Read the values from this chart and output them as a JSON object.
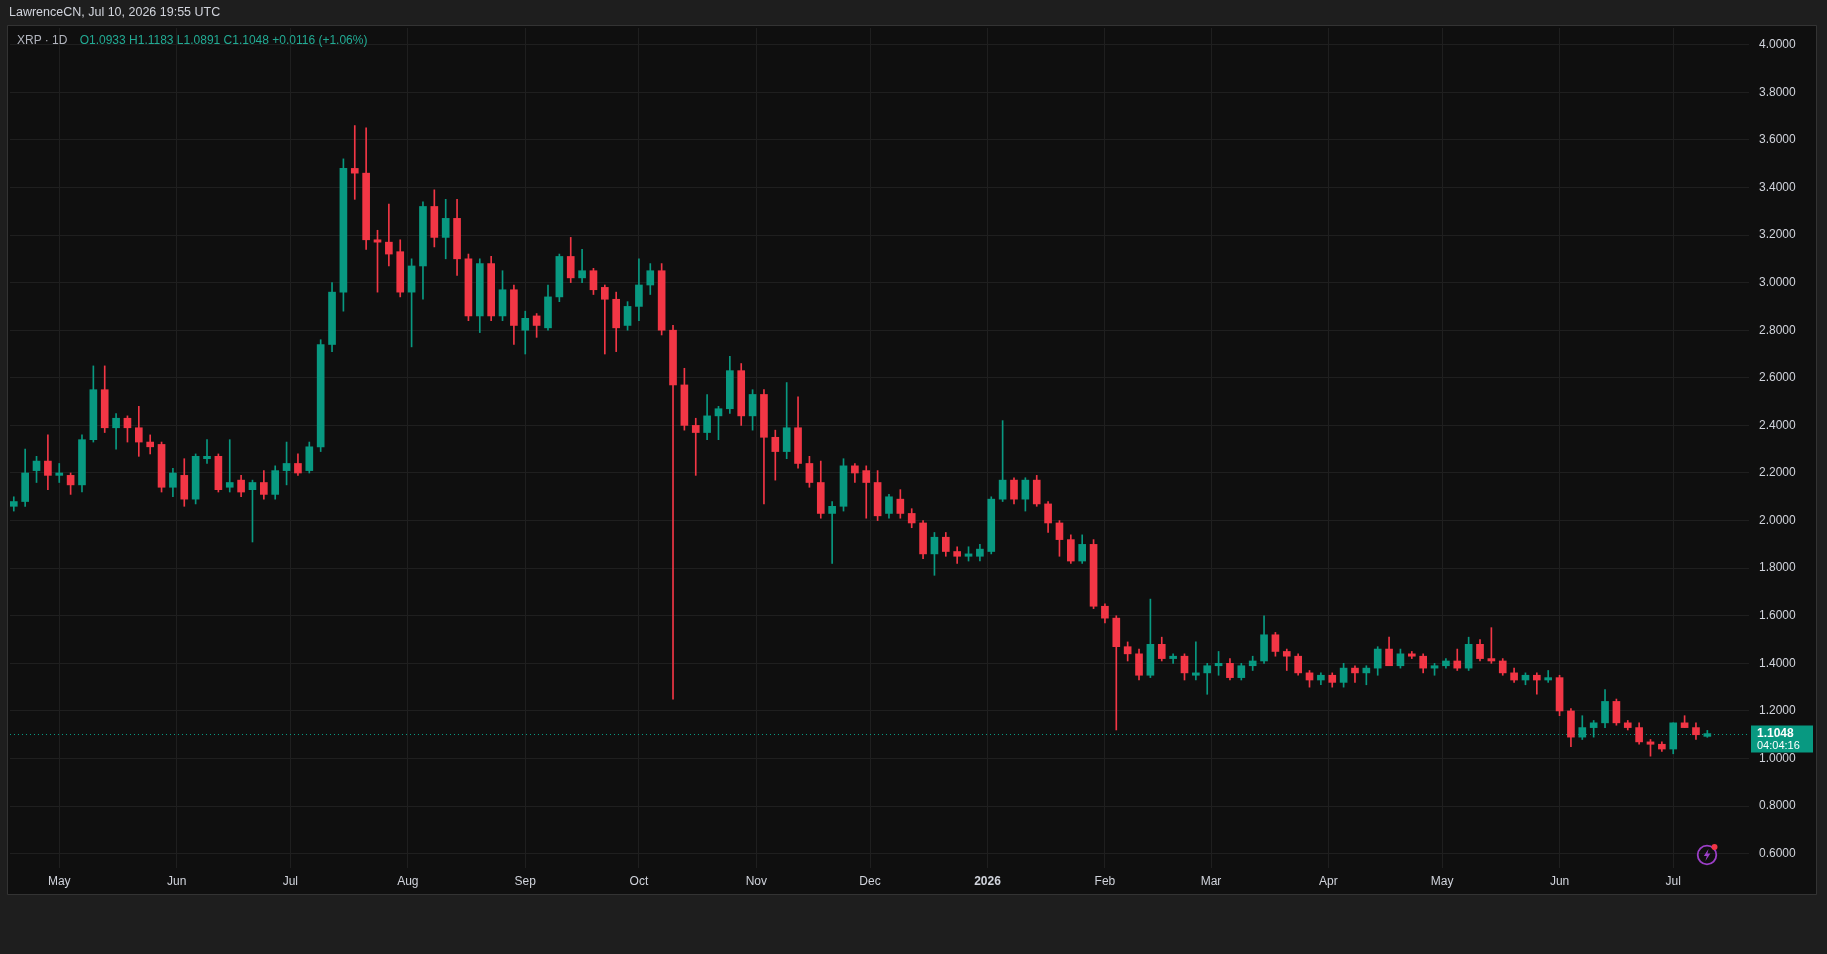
{
  "chart_data": {
    "type": "candlestick",
    "title": "XRP · 1D",
    "annotations": [
      "LawrenceCN, Jul 10, 2026 19:55 UTC",
      "O1.0933 H1.1183 L1.0891 C1.1048 +0.0116 (+1.06%)",
      "04:04:16"
    ],
    "x": [
      "2025-04-19",
      "2025-04-22",
      "2025-04-25",
      "2025-04-28",
      "2025-05-01",
      "2025-05-04",
      "2025-05-07",
      "2025-05-10",
      "2025-05-13",
      "2025-05-16",
      "2025-05-19",
      "2025-05-22",
      "2025-05-25",
      "2025-05-28",
      "2025-05-31",
      "2025-06-03",
      "2025-06-06",
      "2025-06-09",
      "2025-06-12",
      "2025-06-15",
      "2025-06-18",
      "2025-06-21",
      "2025-06-24",
      "2025-06-27",
      "2025-06-30",
      "2025-07-03",
      "2025-07-06",
      "2025-07-09",
      "2025-07-12",
      "2025-07-15",
      "2025-07-18",
      "2025-07-21",
      "2025-07-24",
      "2025-07-27",
      "2025-07-30",
      "2025-08-02",
      "2025-08-05",
      "2025-08-08",
      "2025-08-11",
      "2025-08-14",
      "2025-08-17",
      "2025-08-20",
      "2025-08-23",
      "2025-08-26",
      "2025-08-29",
      "2025-09-01",
      "2025-09-04",
      "2025-09-07",
      "2025-09-10",
      "2025-09-13",
      "2025-09-16",
      "2025-09-19",
      "2025-09-22",
      "2025-09-25",
      "2025-09-28",
      "2025-10-01",
      "2025-10-04",
      "2025-10-07",
      "2025-10-10",
      "2025-10-13",
      "2025-10-16",
      "2025-10-19",
      "2025-10-22",
      "2025-10-25",
      "2025-10-28",
      "2025-10-31",
      "2025-11-03",
      "2025-11-06",
      "2025-11-09",
      "2025-11-12",
      "2025-11-15",
      "2025-11-18",
      "2025-11-21",
      "2025-11-24",
      "2025-11-27",
      "2025-11-30",
      "2025-12-03",
      "2025-12-06",
      "2025-12-09",
      "2025-12-12",
      "2025-12-15",
      "2025-12-18",
      "2025-12-21",
      "2025-12-24",
      "2025-12-27",
      "2025-12-30",
      "2026-01-02",
      "2026-01-05",
      "2026-01-08",
      "2026-01-11",
      "2026-01-14",
      "2026-01-17",
      "2026-01-20",
      "2026-01-23",
      "2026-01-26",
      "2026-01-29",
      "2026-02-01",
      "2026-02-04",
      "2026-02-07",
      "2026-02-10",
      "2026-02-13",
      "2026-02-16",
      "2026-02-19",
      "2026-02-22",
      "2026-02-25",
      "2026-02-28",
      "2026-03-03",
      "2026-03-06",
      "2026-03-09",
      "2026-03-12",
      "2026-03-15",
      "2026-03-18",
      "2026-03-21",
      "2026-03-24",
      "2026-03-27",
      "2026-03-30",
      "2026-04-02",
      "2026-04-05",
      "2026-04-08",
      "2026-04-11",
      "2026-04-14",
      "2026-04-17",
      "2026-04-20",
      "2026-04-23",
      "2026-04-26",
      "2026-04-29",
      "2026-05-02",
      "2026-05-05",
      "2026-05-08",
      "2026-05-11",
      "2026-05-14",
      "2026-05-17",
      "2026-05-20",
      "2026-05-23",
      "2026-05-26",
      "2026-05-29",
      "2026-06-01",
      "2026-06-04",
      "2026-06-07",
      "2026-06-10",
      "2026-06-13",
      "2026-06-16",
      "2026-06-19",
      "2026-06-22",
      "2026-06-25",
      "2026-06-28",
      "2026-07-01",
      "2026-07-04",
      "2026-07-07",
      "2026-07-10"
    ],
    "ohlc": [
      [
        2.06,
        2.1,
        2.04,
        2.08
      ],
      [
        2.08,
        2.3,
        2.06,
        2.2
      ],
      [
        2.21,
        2.27,
        2.16,
        2.25
      ],
      [
        2.25,
        2.36,
        2.13,
        2.19
      ],
      [
        2.19,
        2.24,
        2.16,
        2.2
      ],
      [
        2.19,
        2.2,
        2.11,
        2.15
      ],
      [
        2.15,
        2.36,
        2.12,
        2.34
      ],
      [
        2.34,
        2.65,
        2.33,
        2.55
      ],
      [
        2.55,
        2.65,
        2.37,
        2.39
      ],
      [
        2.39,
        2.45,
        2.3,
        2.43
      ],
      [
        2.43,
        2.44,
        2.33,
        2.39
      ],
      [
        2.39,
        2.48,
        2.27,
        2.33
      ],
      [
        2.33,
        2.36,
        2.28,
        2.31
      ],
      [
        2.32,
        2.33,
        2.12,
        2.14
      ],
      [
        2.14,
        2.22,
        2.1,
        2.2
      ],
      [
        2.19,
        2.26,
        2.06,
        2.09
      ],
      [
        2.09,
        2.28,
        2.07,
        2.27
      ],
      [
        2.26,
        2.34,
        2.24,
        2.27
      ],
      [
        2.27,
        2.28,
        2.12,
        2.13
      ],
      [
        2.14,
        2.34,
        2.12,
        2.16
      ],
      [
        2.17,
        2.19,
        2.1,
        2.12
      ],
      [
        2.13,
        2.17,
        1.91,
        2.16
      ],
      [
        2.16,
        2.21,
        2.09,
        2.11
      ],
      [
        2.11,
        2.23,
        2.09,
        2.21
      ],
      [
        2.21,
        2.33,
        2.15,
        2.24
      ],
      [
        2.24,
        2.28,
        2.19,
        2.2
      ],
      [
        2.21,
        2.33,
        2.2,
        2.31
      ],
      [
        2.31,
        2.76,
        2.29,
        2.74
      ],
      [
        2.74,
        3.0,
        2.71,
        2.96
      ],
      [
        2.96,
        3.52,
        2.88,
        3.48
      ],
      [
        3.48,
        3.66,
        3.35,
        3.46
      ],
      [
        3.46,
        3.65,
        3.14,
        3.18
      ],
      [
        3.18,
        3.22,
        2.96,
        3.17
      ],
      [
        3.17,
        3.33,
        3.07,
        3.12
      ],
      [
        3.13,
        3.18,
        2.94,
        2.96
      ],
      [
        2.96,
        3.1,
        2.73,
        3.07
      ],
      [
        3.07,
        3.34,
        2.93,
        3.32
      ],
      [
        3.32,
        3.39,
        3.15,
        3.19
      ],
      [
        3.19,
        3.35,
        3.1,
        3.27
      ],
      [
        3.27,
        3.35,
        3.03,
        3.1
      ],
      [
        3.1,
        3.12,
        2.84,
        2.86
      ],
      [
        2.86,
        3.1,
        2.79,
        3.08
      ],
      [
        3.08,
        3.11,
        2.84,
        2.86
      ],
      [
        2.86,
        3.05,
        2.84,
        2.97
      ],
      [
        2.97,
        2.99,
        2.74,
        2.82
      ],
      [
        2.8,
        2.88,
        2.7,
        2.85
      ],
      [
        2.86,
        2.87,
        2.77,
        2.82
      ],
      [
        2.81,
        2.99,
        2.8,
        2.94
      ],
      [
        2.94,
        3.12,
        2.92,
        3.11
      ],
      [
        3.11,
        3.19,
        3.0,
        3.02
      ],
      [
        3.02,
        3.14,
        3.0,
        3.05
      ],
      [
        3.05,
        3.06,
        2.95,
        2.97
      ],
      [
        2.98,
        2.99,
        2.7,
        2.93
      ],
      [
        2.93,
        2.96,
        2.71,
        2.81
      ],
      [
        2.82,
        2.92,
        2.8,
        2.9
      ],
      [
        2.9,
        3.1,
        2.84,
        2.99
      ],
      [
        2.99,
        3.08,
        2.95,
        3.05
      ],
      [
        3.05,
        3.08,
        2.78,
        2.8
      ],
      [
        2.8,
        2.82,
        1.25,
        2.57
      ],
      [
        2.57,
        2.64,
        2.38,
        2.4
      ],
      [
        2.4,
        2.43,
        2.19,
        2.37
      ],
      [
        2.37,
        2.53,
        2.34,
        2.44
      ],
      [
        2.44,
        2.48,
        2.34,
        2.47
      ],
      [
        2.47,
        2.69,
        2.45,
        2.63
      ],
      [
        2.63,
        2.66,
        2.4,
        2.44
      ],
      [
        2.44,
        2.55,
        2.38,
        2.53
      ],
      [
        2.53,
        2.55,
        2.07,
        2.35
      ],
      [
        2.35,
        2.38,
        2.17,
        2.29
      ],
      [
        2.29,
        2.58,
        2.26,
        2.39
      ],
      [
        2.39,
        2.52,
        2.22,
        2.24
      ],
      [
        2.24,
        2.27,
        2.14,
        2.16
      ],
      [
        2.16,
        2.25,
        2.01,
        2.03
      ],
      [
        2.03,
        2.08,
        1.82,
        2.06
      ],
      [
        2.06,
        2.26,
        2.04,
        2.23
      ],
      [
        2.23,
        2.24,
        2.16,
        2.2
      ],
      [
        2.21,
        2.23,
        2.01,
        2.16
      ],
      [
        2.16,
        2.21,
        2.0,
        2.02
      ],
      [
        2.03,
        2.11,
        2.01,
        2.1
      ],
      [
        2.09,
        2.13,
        2.01,
        2.03
      ],
      [
        2.03,
        2.05,
        1.97,
        1.99
      ],
      [
        1.99,
        2.0,
        1.84,
        1.86
      ],
      [
        1.86,
        1.95,
        1.77,
        1.93
      ],
      [
        1.93,
        1.95,
        1.85,
        1.87
      ],
      [
        1.87,
        1.89,
        1.82,
        1.85
      ],
      [
        1.85,
        1.89,
        1.83,
        1.86
      ],
      [
        1.85,
        1.9,
        1.83,
        1.88
      ],
      [
        1.87,
        2.1,
        1.86,
        2.09
      ],
      [
        2.09,
        2.42,
        2.08,
        2.17
      ],
      [
        2.17,
        2.18,
        2.07,
        2.09
      ],
      [
        2.09,
        2.18,
        2.04,
        2.17
      ],
      [
        2.17,
        2.19,
        2.06,
        2.07
      ],
      [
        2.07,
        2.08,
        1.95,
        1.99
      ],
      [
        1.99,
        2.0,
        1.85,
        1.92
      ],
      [
        1.92,
        1.94,
        1.82,
        1.83
      ],
      [
        1.83,
        1.94,
        1.82,
        1.9
      ],
      [
        1.9,
        1.92,
        1.63,
        1.64
      ],
      [
        1.64,
        1.65,
        1.57,
        1.59
      ],
      [
        1.59,
        1.6,
        1.12,
        1.47
      ],
      [
        1.47,
        1.49,
        1.41,
        1.44
      ],
      [
        1.44,
        1.46,
        1.33,
        1.35
      ],
      [
        1.35,
        1.67,
        1.34,
        1.48
      ],
      [
        1.48,
        1.51,
        1.41,
        1.42
      ],
      [
        1.42,
        1.44,
        1.4,
        1.43
      ],
      [
        1.43,
        1.44,
        1.33,
        1.36
      ],
      [
        1.35,
        1.49,
        1.33,
        1.36
      ],
      [
        1.36,
        1.4,
        1.27,
        1.39
      ],
      [
        1.39,
        1.45,
        1.35,
        1.4
      ],
      [
        1.4,
        1.42,
        1.33,
        1.34
      ],
      [
        1.34,
        1.4,
        1.33,
        1.39
      ],
      [
        1.39,
        1.43,
        1.37,
        1.41
      ],
      [
        1.41,
        1.6,
        1.4,
        1.52
      ],
      [
        1.52,
        1.53,
        1.43,
        1.45
      ],
      [
        1.45,
        1.46,
        1.37,
        1.43
      ],
      [
        1.43,
        1.44,
        1.35,
        1.36
      ],
      [
        1.36,
        1.37,
        1.3,
        1.33
      ],
      [
        1.33,
        1.36,
        1.31,
        1.35
      ],
      [
        1.35,
        1.36,
        1.3,
        1.32
      ],
      [
        1.32,
        1.4,
        1.3,
        1.38
      ],
      [
        1.38,
        1.39,
        1.32,
        1.36
      ],
      [
        1.36,
        1.39,
        1.31,
        1.38
      ],
      [
        1.38,
        1.47,
        1.35,
        1.46
      ],
      [
        1.46,
        1.51,
        1.39,
        1.39
      ],
      [
        1.39,
        1.46,
        1.38,
        1.44
      ],
      [
        1.44,
        1.45,
        1.42,
        1.43
      ],
      [
        1.43,
        1.44,
        1.36,
        1.38
      ],
      [
        1.38,
        1.4,
        1.35,
        1.39
      ],
      [
        1.39,
        1.42,
        1.38,
        1.41
      ],
      [
        1.41,
        1.46,
        1.37,
        1.38
      ],
      [
        1.38,
        1.51,
        1.37,
        1.48
      ],
      [
        1.48,
        1.5,
        1.41,
        1.42
      ],
      [
        1.42,
        1.55,
        1.4,
        1.41
      ],
      [
        1.41,
        1.42,
        1.35,
        1.36
      ],
      [
        1.36,
        1.38,
        1.32,
        1.33
      ],
      [
        1.33,
        1.36,
        1.31,
        1.35
      ],
      [
        1.35,
        1.36,
        1.27,
        1.33
      ],
      [
        1.33,
        1.37,
        1.32,
        1.34
      ],
      [
        1.34,
        1.35,
        1.18,
        1.2
      ],
      [
        1.2,
        1.21,
        1.05,
        1.09
      ],
      [
        1.09,
        1.18,
        1.08,
        1.13
      ],
      [
        1.13,
        1.16,
        1.09,
        1.15
      ],
      [
        1.15,
        1.29,
        1.13,
        1.24
      ],
      [
        1.24,
        1.25,
        1.14,
        1.15
      ],
      [
        1.15,
        1.16,
        1.12,
        1.13
      ],
      [
        1.13,
        1.15,
        1.06,
        1.07
      ],
      [
        1.07,
        1.08,
        1.01,
        1.06
      ],
      [
        1.06,
        1.07,
        1.03,
        1.04
      ],
      [
        1.04,
        1.15,
        1.02,
        1.15
      ],
      [
        1.15,
        1.18,
        1.13,
        1.13
      ],
      [
        1.13,
        1.15,
        1.08,
        1.1
      ],
      [
        1.0933,
        1.1183,
        1.0891,
        1.1048
      ]
    ],
    "colors": [
      "#089981",
      "#089981",
      "#089981",
      "#f23645",
      "#089981",
      "#f23645",
      "#089981",
      "#089981",
      "#f23645",
      "#089981",
      "#f23645",
      "#f23645",
      "#f23645",
      "#f23645",
      "#089981",
      "#f23645",
      "#089981",
      "#089981",
      "#f23645",
      "#089981",
      "#f23645",
      "#089981",
      "#f23645",
      "#089981",
      "#089981",
      "#f23645",
      "#089981",
      "#089981",
      "#089981",
      "#089981",
      "#f23645",
      "#f23645",
      "#f23645",
      "#f23645",
      "#f23645",
      "#089981",
      "#089981",
      "#f23645",
      "#089981",
      "#f23645",
      "#f23645",
      "#089981",
      "#f23645",
      "#089981",
      "#f23645",
      "#089981",
      "#f23645",
      "#089981",
      "#089981",
      "#f23645",
      "#089981",
      "#f23645",
      "#f23645",
      "#f23645",
      "#089981",
      "#089981",
      "#089981",
      "#f23645",
      "#f23645",
      "#f23645",
      "#f23645",
      "#089981",
      "#089981",
      "#089981",
      "#f23645",
      "#089981",
      "#f23645",
      "#f23645",
      "#089981",
      "#f23645",
      "#f23645",
      "#f23645",
      "#089981",
      "#089981",
      "#f23645",
      "#f23645",
      "#f23645",
      "#089981",
      "#f23645",
      "#f23645",
      "#f23645",
      "#089981",
      "#f23645",
      "#f23645",
      "#089981",
      "#089981",
      "#089981",
      "#089981",
      "#f23645",
      "#089981",
      "#f23645",
      "#f23645",
      "#f23645",
      "#f23645",
      "#089981",
      "#f23645",
      "#f23645",
      "#f23645",
      "#f23645",
      "#f23645",
      "#089981",
      "#f23645",
      "#089981",
      "#f23645",
      "#089981",
      "#089981",
      "#089981",
      "#f23645",
      "#089981",
      "#089981",
      "#089981",
      "#f23645",
      "#f23645",
      "#f23645",
      "#f23645",
      "#089981",
      "#f23645",
      "#089981",
      "#f23645",
      "#089981",
      "#089981",
      "#f23645",
      "#089981",
      "#f23645",
      "#f23645",
      "#089981",
      "#089981",
      "#f23645",
      "#089981",
      "#f23645",
      "#f23645",
      "#f23645",
      "#f23645",
      "#089981",
      "#f23645",
      "#089981",
      "#f23645",
      "#f23645",
      "#089981",
      "#089981",
      "#089981",
      "#f23645",
      "#f23645",
      "#f23645",
      "#f23645",
      "#f23645",
      "#089981",
      "#f23645",
      "#f23645",
      "#089981"
    ],
    "xlim": [
      "2025-04-18",
      "2026-07-21"
    ],
    "xticks": [
      {
        "value": "2025-05-01",
        "label": "May"
      },
      {
        "value": "2025-06-01",
        "label": "Jun"
      },
      {
        "value": "2025-07-01",
        "label": "Jul"
      },
      {
        "value": "2025-08-01",
        "label": "Aug"
      },
      {
        "value": "2025-09-01",
        "label": "Sep"
      },
      {
        "value": "2025-10-01",
        "label": "Oct"
      },
      {
        "value": "2025-11-01",
        "label": "Nov"
      },
      {
        "value": "2025-12-01",
        "label": "Dec"
      },
      {
        "value": "2026-01-01",
        "label": "2026"
      },
      {
        "value": "2026-02-01",
        "label": "Feb"
      },
      {
        "value": "2026-03-01",
        "label": "Mar"
      },
      {
        "value": "2026-04-01",
        "label": "Apr"
      },
      {
        "value": "2026-05-01",
        "label": "May"
      },
      {
        "value": "2026-06-01",
        "label": "Jun"
      },
      {
        "value": "2026-07-01",
        "label": "Jul"
      }
    ],
    "ylim": [
      0.54,
      4.07
    ],
    "yticks": [
      {
        "value": 0.6,
        "label": "0.6000"
      },
      {
        "value": 0.8,
        "label": "0.8000"
      },
      {
        "value": 1.0,
        "label": "1.0000"
      },
      {
        "value": 1.2,
        "label": "1.2000"
      },
      {
        "value": 1.4,
        "label": "1.4000"
      },
      {
        "value": 1.6,
        "label": "1.6000"
      },
      {
        "value": 1.8,
        "label": "1.8000"
      },
      {
        "value": 2.0,
        "label": "2.0000"
      },
      {
        "value": 2.2,
        "label": "2.2000"
      },
      {
        "value": 2.4,
        "label": "2.4000"
      },
      {
        "value": 2.6,
        "label": "2.6000"
      },
      {
        "value": 2.8,
        "label": "2.8000"
      },
      {
        "value": 3.0,
        "label": "3.0000"
      },
      {
        "value": 3.2,
        "label": "3.2000"
      },
      {
        "value": 3.4,
        "label": "3.4000"
      },
      {
        "value": 3.6,
        "label": "3.6000"
      },
      {
        "value": 3.8,
        "label": "3.8000"
      },
      {
        "value": 4.0,
        "label": "4.0000"
      }
    ],
    "grid": true,
    "ref_lines": [
      {
        "axis": "y",
        "value": 1.1048,
        "label": "1.1048",
        "color": "#089981",
        "line_style": "dotted"
      }
    ]
  }
}
